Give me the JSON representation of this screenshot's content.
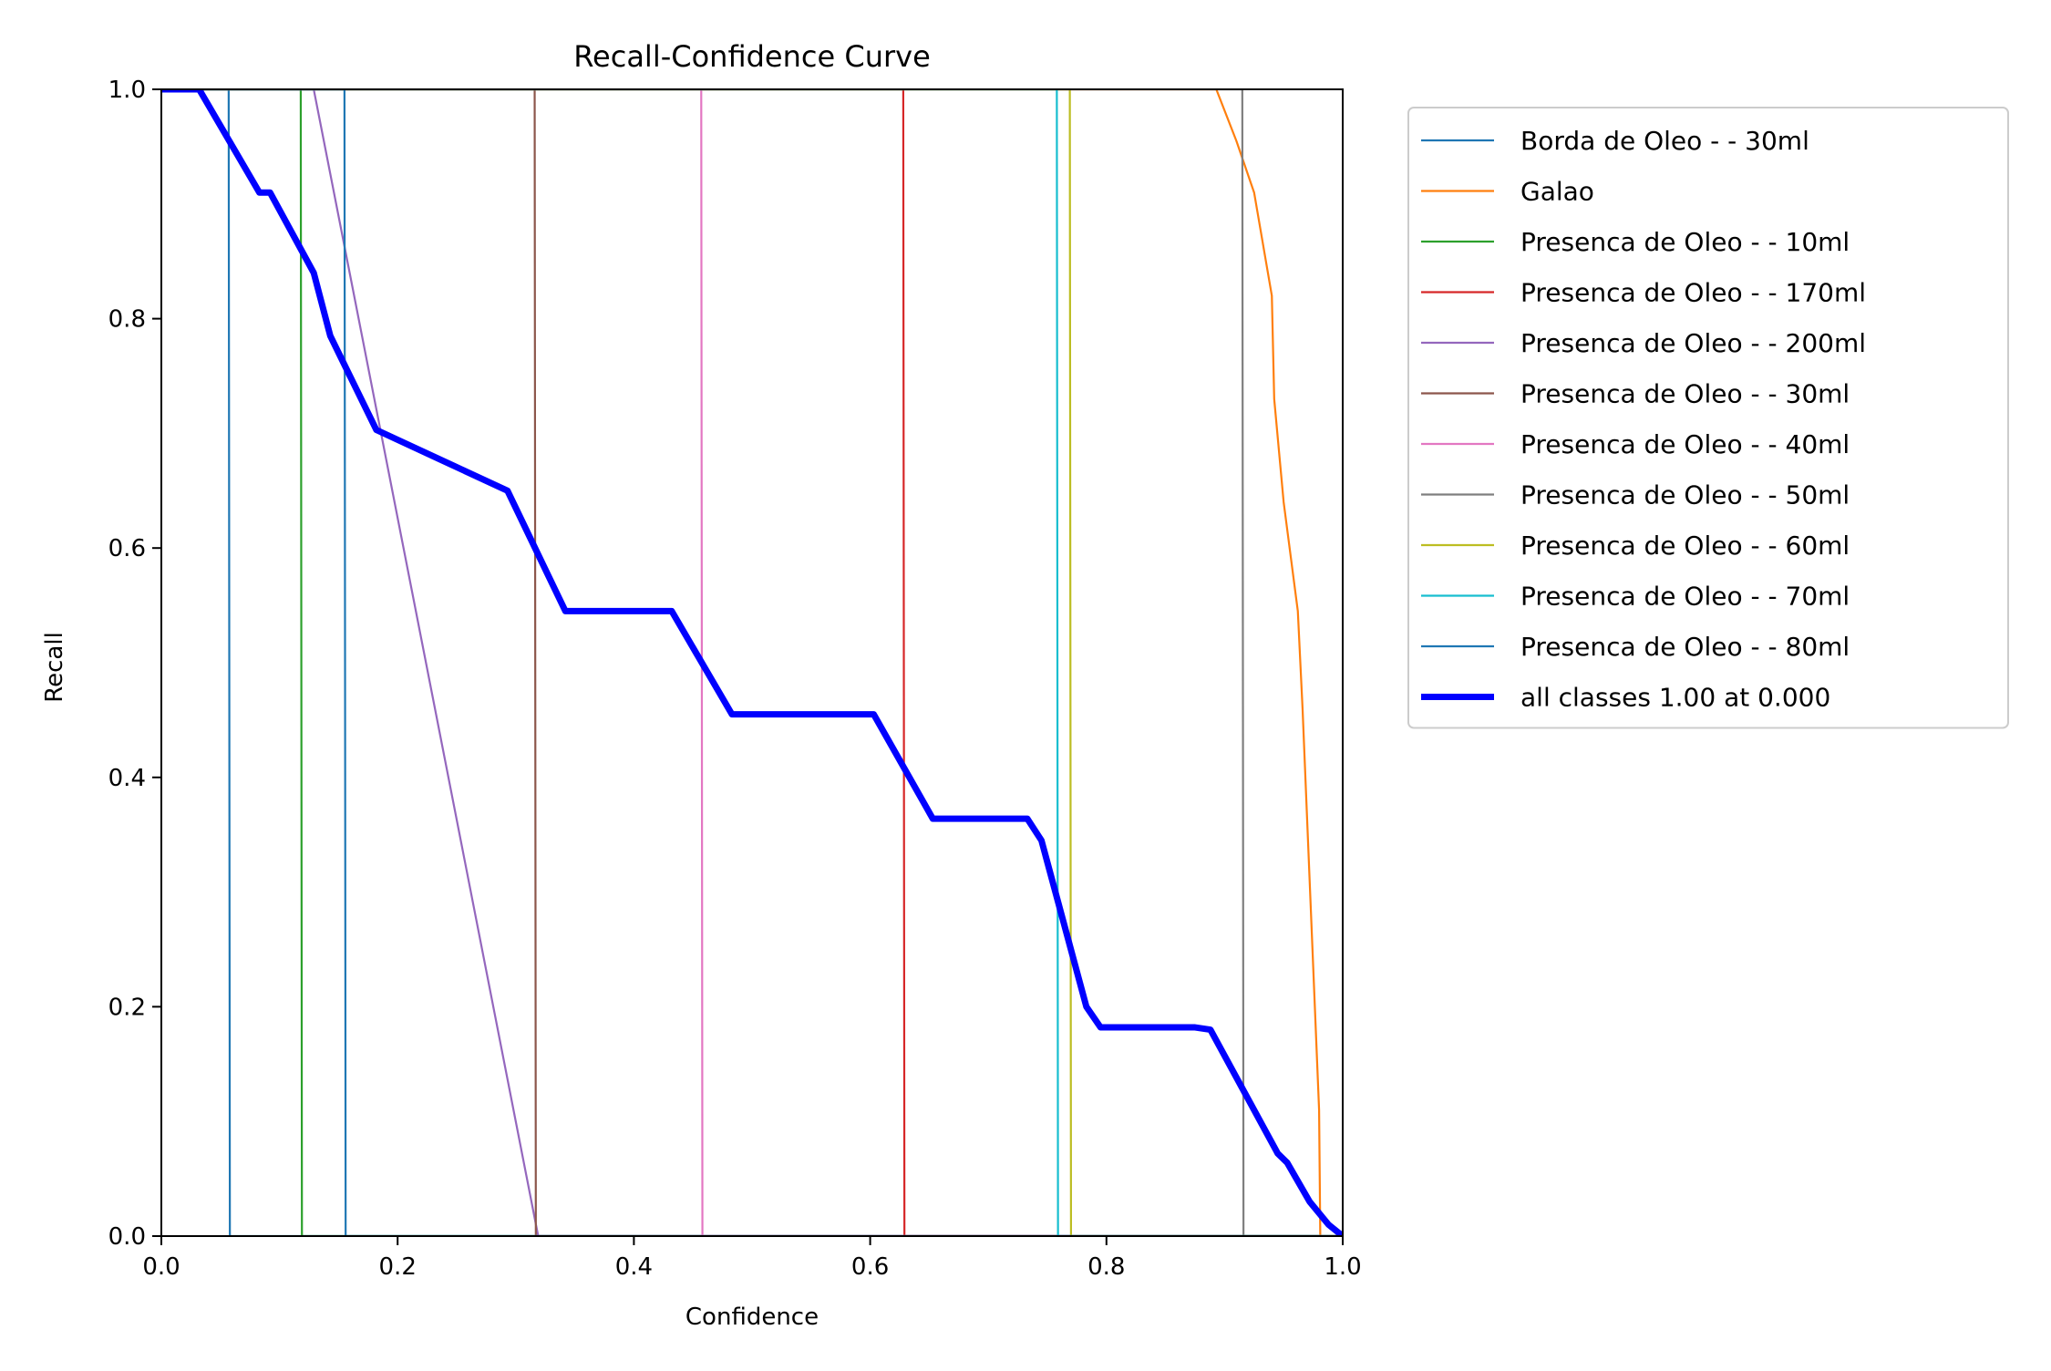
{
  "chart_data": {
    "type": "line",
    "title": "Recall-Confidence Curve",
    "xlabel": "Confidence",
    "ylabel": "Recall",
    "xlim": [
      0,
      1
    ],
    "ylim": [
      0,
      1
    ],
    "xticks": [
      "0.0",
      "0.2",
      "0.4",
      "0.6",
      "0.8",
      "1.0"
    ],
    "yticks": [
      "0.0",
      "0.2",
      "0.4",
      "0.6",
      "0.8",
      "1.0"
    ],
    "grid": false,
    "legend_position": "outside upper-right",
    "series": [
      {
        "name": "Borda de Oleo - - 30ml",
        "color": "#1f77b4",
        "points": [
          [
            0,
            1
          ],
          [
            0.057,
            1
          ],
          [
            0.058,
            0
          ],
          [
            1,
            0
          ]
        ]
      },
      {
        "name": "Galao",
        "color": "#ff7f0e",
        "points": [
          [
            0,
            1
          ],
          [
            0.893,
            1
          ],
          [
            0.91,
            0.955
          ],
          [
            0.925,
            0.91
          ],
          [
            0.94,
            0.82
          ],
          [
            0.942,
            0.73
          ],
          [
            0.95,
            0.64
          ],
          [
            0.962,
            0.545
          ],
          [
            0.966,
            0.46
          ],
          [
            0.98,
            0.11
          ],
          [
            0.981,
            0
          ],
          [
            1,
            0
          ]
        ]
      },
      {
        "name": "Presenca de Oleo - - 10ml",
        "color": "#2ca02c",
        "points": [
          [
            0,
            1
          ],
          [
            0.118,
            1
          ],
          [
            0.119,
            0
          ],
          [
            1,
            0
          ]
        ]
      },
      {
        "name": "Presenca de Oleo - - 170ml",
        "color": "#d62728",
        "points": [
          [
            0,
            1
          ],
          [
            0.628,
            1
          ],
          [
            0.629,
            0
          ],
          [
            1,
            0
          ]
        ]
      },
      {
        "name": "Presenca de Oleo - - 200ml",
        "color": "#9467bd",
        "points": [
          [
            0,
            1
          ],
          [
            0.129,
            1
          ],
          [
            0.319,
            0
          ],
          [
            1,
            0
          ]
        ]
      },
      {
        "name": "Presenca de Oleo - - 30ml",
        "color": "#8c564b",
        "points": [
          [
            0,
            1
          ],
          [
            0.316,
            1
          ],
          [
            0.317,
            0
          ],
          [
            1,
            0
          ]
        ]
      },
      {
        "name": "Presenca de Oleo - - 40ml",
        "color": "#e377c2",
        "points": [
          [
            0,
            1
          ],
          [
            0.457,
            1
          ],
          [
            0.458,
            0
          ],
          [
            1,
            0
          ]
        ]
      },
      {
        "name": "Presenca de Oleo - - 50ml",
        "color": "#7f7f7f",
        "points": [
          [
            0,
            1
          ],
          [
            0.915,
            1
          ],
          [
            0.916,
            0
          ],
          [
            1,
            0
          ]
        ]
      },
      {
        "name": "Presenca de Oleo - - 60ml",
        "color": "#bcbd22",
        "points": [
          [
            0,
            1
          ],
          [
            0.769,
            1
          ],
          [
            0.77,
            0
          ],
          [
            1,
            0
          ]
        ]
      },
      {
        "name": "Presenca de Oleo - - 70ml",
        "color": "#17becf",
        "points": [
          [
            0,
            1
          ],
          [
            0.758,
            1
          ],
          [
            0.759,
            0
          ],
          [
            1,
            0
          ]
        ]
      },
      {
        "name": "Presenca de Oleo - - 80ml",
        "color": "#1f77b4",
        "points": [
          [
            0,
            1
          ],
          [
            0.155,
            1
          ],
          [
            0.156,
            0
          ],
          [
            1,
            0
          ]
        ]
      },
      {
        "name": "all classes 1.00 at 0.000",
        "color": "#0000ff",
        "bold": true,
        "points": [
          [
            0,
            1
          ],
          [
            0.032,
            1
          ],
          [
            0.083,
            0.91
          ],
          [
            0.092,
            0.91
          ],
          [
            0.129,
            0.84
          ],
          [
            0.143,
            0.785
          ],
          [
            0.182,
            0.703
          ],
          [
            0.293,
            0.65
          ],
          [
            0.342,
            0.545
          ],
          [
            0.432,
            0.545
          ],
          [
            0.483,
            0.455
          ],
          [
            0.603,
            0.455
          ],
          [
            0.653,
            0.364
          ],
          [
            0.733,
            0.364
          ],
          [
            0.745,
            0.345
          ],
          [
            0.783,
            0.2
          ],
          [
            0.795,
            0.182
          ],
          [
            0.875,
            0.182
          ],
          [
            0.888,
            0.18
          ],
          [
            0.945,
            0.072
          ],
          [
            0.953,
            0.064
          ],
          [
            0.972,
            0.03
          ],
          [
            0.988,
            0.01
          ],
          [
            1,
            0.0
          ]
        ]
      }
    ]
  }
}
